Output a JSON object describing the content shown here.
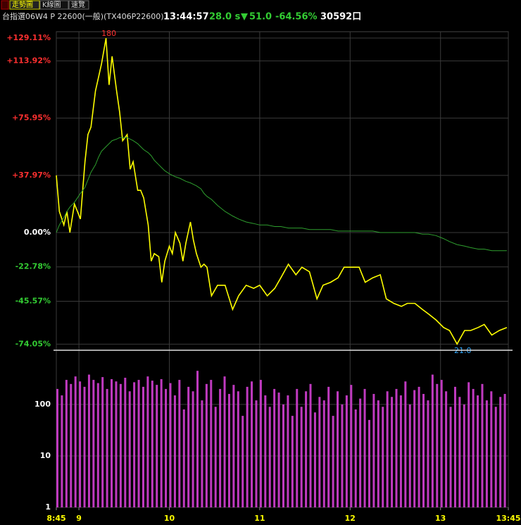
{
  "tabs": [
    "走勢圖",
    "K線圖",
    "速覽"
  ],
  "header": {
    "title": "台指選06W4 P 22600(一般)(TX406P22600)",
    "time": "13:44:57",
    "interval": "28.0 s",
    "change": "51.0",
    "change_pct": "-64.56%",
    "volume": "30592口"
  },
  "chart_data": [
    {
      "type": "line",
      "x": [
        525,
        527,
        530,
        532,
        534,
        537,
        539,
        541,
        544,
        546,
        548,
        551,
        553,
        555,
        558,
        560,
        562,
        565,
        567,
        569,
        572,
        574,
        576,
        579,
        581,
        583,
        586,
        588,
        590,
        593,
        595,
        597,
        600,
        602,
        604,
        607,
        609,
        611,
        614,
        616,
        618,
        621,
        623,
        625,
        628,
        632,
        637,
        642,
        646,
        651,
        656,
        660,
        665,
        670,
        674,
        679,
        684,
        688,
        693,
        698,
        702,
        707,
        712,
        716,
        721,
        726,
        730,
        735,
        740,
        744,
        749,
        754,
        758,
        763,
        768,
        772,
        777,
        782,
        786,
        791,
        796,
        800,
        805,
        809,
        814,
        819,
        824
      ],
      "series": [
        {
          "color": "#ffff00",
          "values": [
            38,
            14,
            5,
            14,
            0,
            19,
            14,
            9,
            47,
            65,
            70,
            94,
            103,
            112,
            129,
            98,
            117,
            94,
            80,
            61,
            65,
            42,
            47,
            28,
            28,
            23,
            5,
            -19,
            -14,
            -16,
            -33,
            -19,
            -9,
            -14,
            0,
            -7,
            -19,
            -7,
            7,
            -5,
            -14,
            -23,
            -21,
            -23,
            -42,
            -35,
            -35,
            -51,
            -42,
            -35,
            -37,
            -35,
            -42,
            -37,
            -30,
            -21,
            -28,
            -23,
            -26,
            -44,
            -35,
            -33,
            -30,
            -23,
            -23,
            -23,
            -33,
            -30,
            -28,
            -44,
            -47,
            -49,
            -47,
            -47,
            -51,
            -54,
            -58,
            -63,
            -65,
            -74,
            -65,
            -65,
            -63,
            -61,
            -68,
            -65,
            -63
          ]
        },
        {
          "color": "#2e9e2e",
          "values": [
            0,
            5,
            10,
            14,
            17,
            20,
            23,
            26,
            30,
            35,
            40,
            45,
            50,
            54,
            57,
            59,
            61,
            62,
            63,
            63,
            63,
            62,
            61,
            59,
            57,
            55,
            53,
            51,
            48,
            45,
            43,
            41,
            39,
            38,
            37,
            36,
            35,
            34,
            33,
            32,
            31,
            29,
            26,
            24,
            22,
            18,
            14,
            11,
            9,
            7,
            6,
            5,
            5,
            4,
            4,
            3,
            3,
            3,
            2,
            2,
            2,
            2,
            1,
            1,
            1,
            1,
            1,
            1,
            0,
            0,
            0,
            0,
            0,
            0,
            -1,
            -1,
            -2,
            -4,
            -6,
            -8,
            -9,
            -10,
            -11,
            -11,
            -12,
            -12,
            -12
          ]
        }
      ],
      "high_label": "180",
      "low_label": "21.0",
      "xlim": [
        525,
        825
      ],
      "ylim": [
        -78.1,
        133.3
      ],
      "yticks": [
        {
          "value": 129.11,
          "label": "+129.11%"
        },
        {
          "value": 113.92,
          "label": "+113.92%"
        },
        {
          "value": 75.95,
          "label": "+75.95%"
        },
        {
          "value": 37.97,
          "label": "+37.97%"
        },
        {
          "value": 0,
          "label": "0.00%"
        },
        {
          "value": -22.78,
          "label": "-22.78%"
        },
        {
          "value": -45.57,
          "label": "-45.57%"
        },
        {
          "value": -74.05,
          "label": "-74.05%"
        }
      ],
      "grid": true
    },
    {
      "type": "bar",
      "log_scale": true,
      "color": "#c03ac0",
      "x": [
        525,
        528,
        531,
        534,
        537,
        540,
        543,
        546,
        549,
        552,
        555,
        558,
        561,
        564,
        567,
        570,
        573,
        576,
        579,
        582,
        585,
        588,
        591,
        594,
        597,
        600,
        603,
        606,
        609,
        612,
        615,
        618,
        621,
        624,
        627,
        630,
        633,
        636,
        639,
        642,
        645,
        648,
        651,
        654,
        657,
        660,
        663,
        666,
        669,
        672,
        675,
        678,
        681,
        684,
        687,
        690,
        693,
        696,
        699,
        702,
        705,
        708,
        711,
        714,
        717,
        720,
        723,
        726,
        729,
        732,
        735,
        738,
        741,
        744,
        747,
        750,
        753,
        756,
        759,
        762,
        765,
        768,
        771,
        774,
        777,
        780,
        783,
        786,
        789,
        792,
        795,
        798,
        801,
        804,
        807,
        810,
        813,
        816,
        819,
        822
      ],
      "values": [
        200,
        150,
        300,
        250,
        350,
        280,
        220,
        380,
        300,
        260,
        340,
        200,
        310,
        280,
        250,
        330,
        180,
        270,
        300,
        220,
        350,
        290,
        240,
        310,
        200,
        260,
        150,
        300,
        80,
        220,
        180,
        450,
        120,
        250,
        300,
        90,
        200,
        350,
        160,
        240,
        180,
        60,
        220,
        280,
        120,
        300,
        150,
        90,
        200,
        170,
        100,
        150,
        60,
        200,
        90,
        180,
        250,
        70,
        140,
        120,
        220,
        60,
        180,
        100,
        150,
        240,
        80,
        130,
        200,
        50,
        160,
        120,
        90,
        180,
        140,
        200,
        150,
        280,
        100,
        190,
        220,
        160,
        120,
        380,
        250,
        300,
        180,
        90,
        220,
        140,
        100,
        270,
        200,
        150,
        250,
        120,
        180,
        90,
        140,
        160
      ],
      "xlim": [
        525,
        825
      ],
      "ylim": [
        1,
        1130
      ],
      "yticks": [
        1,
        10,
        100
      ],
      "xticks": [
        {
          "value": 525,
          "label": "8:45"
        },
        {
          "value": 540,
          "label": "9"
        },
        {
          "value": 600,
          "label": "10"
        },
        {
          "value": 660,
          "label": "11"
        },
        {
          "value": 720,
          "label": "12"
        },
        {
          "value": 780,
          "label": "13"
        },
        {
          "value": 825,
          "label": "13:45"
        }
      ],
      "grid": true
    }
  ]
}
